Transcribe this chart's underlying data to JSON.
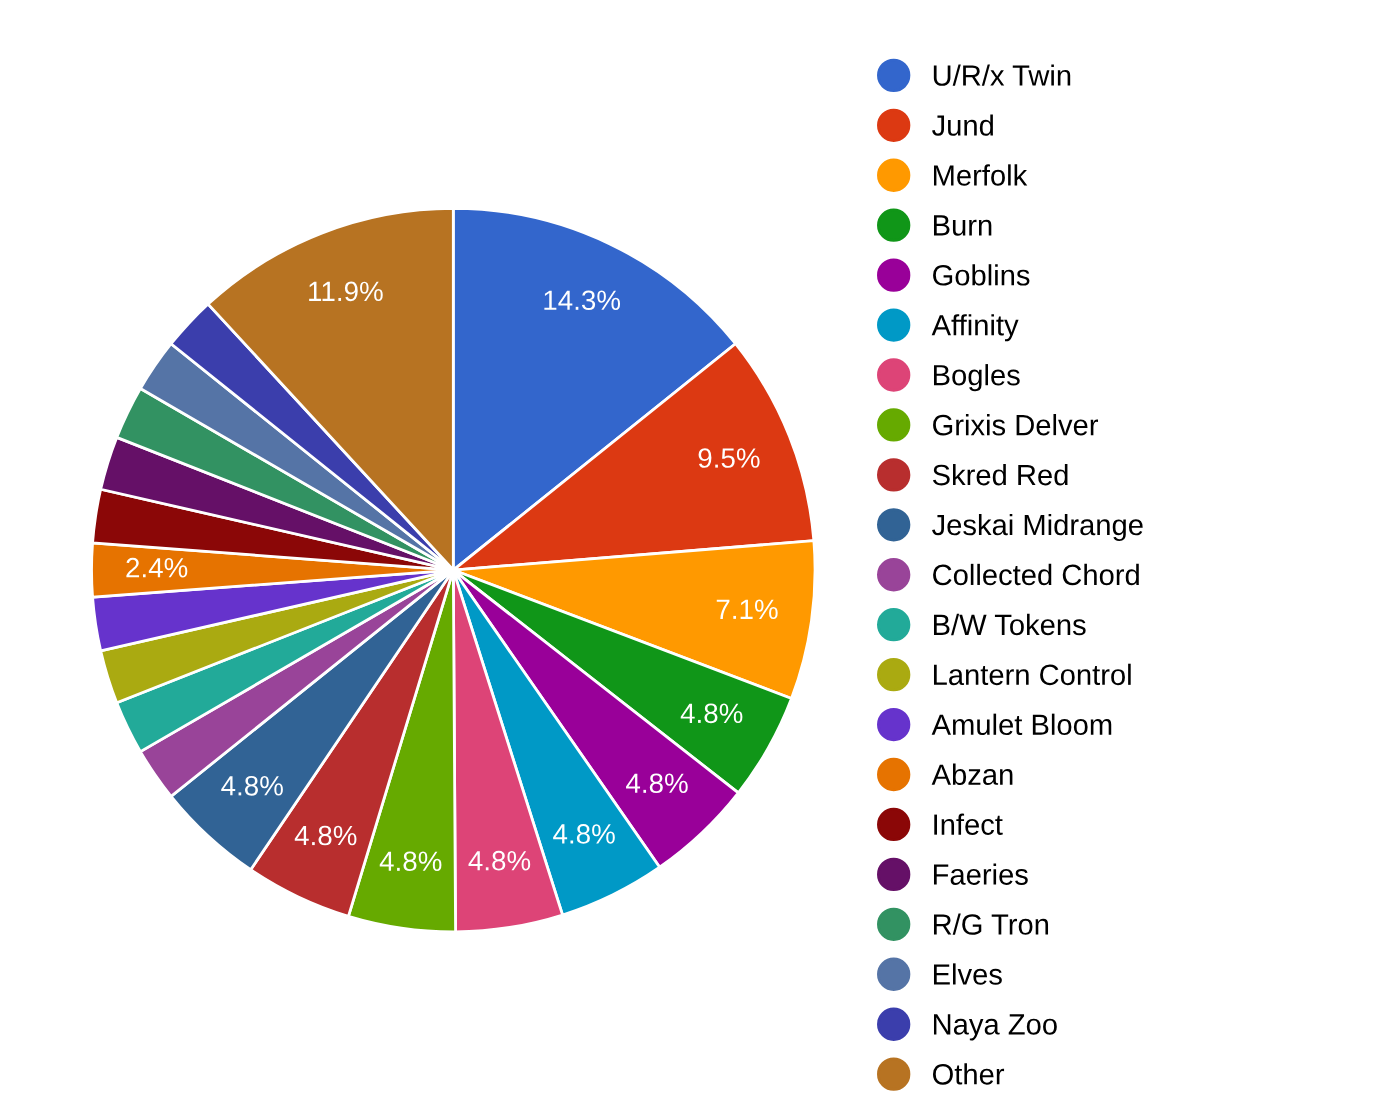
{
  "chart_data": {
    "type": "pie",
    "categories": [
      "U/R/x Twin",
      "Jund",
      "Merfolk",
      "Burn",
      "Goblins",
      "Affinity",
      "Bogles",
      "Grixis Delver",
      "Skred Red",
      "Jeskai Midrange",
      "Collected Chord",
      "B/W Tokens",
      "Lantern Control",
      "Amulet Bloom",
      "Abzan",
      "Infect",
      "Faeries",
      "R/G Tron",
      "Elves",
      "Naya Zoo",
      "Other"
    ],
    "values": [
      14.3,
      9.5,
      7.1,
      4.8,
      4.8,
      4.8,
      4.8,
      4.8,
      4.8,
      4.8,
      2.4,
      2.4,
      2.4,
      2.4,
      2.4,
      2.4,
      2.4,
      2.4,
      2.4,
      2.4,
      11.9
    ],
    "value_labels": [
      "14.3%",
      "9.5%",
      "7.1%",
      "4.8%",
      "4.8%",
      "4.8%",
      "4.8%",
      "4.8%",
      "4.8%",
      "4.8%",
      null,
      null,
      null,
      null,
      "2.4%",
      null,
      null,
      null,
      null,
      null,
      "11.9%"
    ],
    "colors": [
      "#3366cc",
      "#dc3912",
      "#ff9900",
      "#109618",
      "#990099",
      "#0099c6",
      "#dd4477",
      "#66aa00",
      "#b82e2e",
      "#316395",
      "#994499",
      "#22aa99",
      "#aaaa11",
      "#6633cc",
      "#e67300",
      "#8b0707",
      "#651067",
      "#329262",
      "#5574a6",
      "#3b3eac",
      "#b77322"
    ],
    "legend": "right"
  }
}
